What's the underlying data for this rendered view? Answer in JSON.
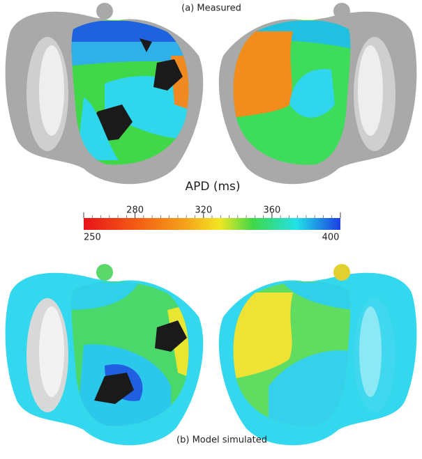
{
  "panels": [
    {
      "label": "(a) Measured"
    },
    {
      "label": "(b) Model simulated"
    }
  ],
  "colorbar": {
    "title": "APD (ms)",
    "range": [
      250,
      400
    ],
    "ticks": [
      250,
      280,
      320,
      360,
      400
    ]
  }
}
